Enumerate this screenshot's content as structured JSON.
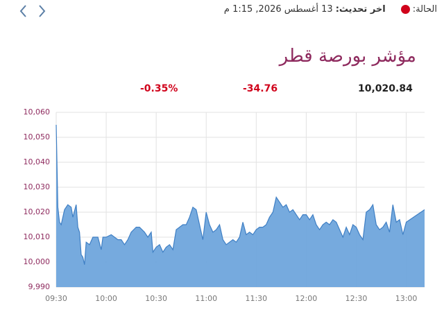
{
  "header": {
    "status_label": "الحالة:",
    "update_label": "اخر تحديث:",
    "update_value": "13 أغسطس 2026, 1:15 م"
  },
  "title": "مؤشر بورصة قطر",
  "quote": {
    "price": "10,020.84",
    "change": "-34.76",
    "change_pct": "-0.35%"
  },
  "chart_data": {
    "type": "area",
    "color": "#6fa5dc",
    "grid": true,
    "x": [
      "09:30",
      "09:31",
      "09:32",
      "09:33",
      "09:35",
      "09:37",
      "09:39",
      "09:40",
      "09:42",
      "09:43",
      "09:44",
      "09:45",
      "09:46",
      "09:47",
      "09:48",
      "09:50",
      "09:52",
      "09:54",
      "09:55",
      "09:57",
      "09:58",
      "10:00",
      "10:03",
      "10:05",
      "10:07",
      "10:09",
      "10:11",
      "10:13",
      "10:15",
      "10:18",
      "10:20",
      "10:23",
      "10:25",
      "10:27",
      "10:28",
      "10:30",
      "10:32",
      "10:34",
      "10:36",
      "10:38",
      "10:40",
      "10:42",
      "10:44",
      "10:46",
      "10:48",
      "10:50",
      "10:52",
      "10:54",
      "10:56",
      "10:58",
      "11:00",
      "11:02",
      "11:04",
      "11:06",
      "11:08",
      "11:10",
      "11:12",
      "11:14",
      "11:16",
      "11:18",
      "11:20",
      "11:22",
      "11:24",
      "11:26",
      "11:28",
      "11:30",
      "11:32",
      "11:34",
      "11:36",
      "11:38",
      "11:40",
      "11:42",
      "11:44",
      "11:46",
      "11:48",
      "11:50",
      "11:52",
      "11:54",
      "11:56",
      "11:58",
      "12:00",
      "12:02",
      "12:04",
      "12:06",
      "12:08",
      "12:10",
      "12:12",
      "12:14",
      "12:16",
      "12:18",
      "12:20",
      "12:22",
      "12:24",
      "12:26",
      "12:28",
      "12:30",
      "12:32",
      "12:34",
      "12:36",
      "12:38",
      "12:40",
      "12:42",
      "12:44",
      "12:46",
      "12:48",
      "12:50",
      "12:52",
      "12:54",
      "12:56",
      "12:58",
      "13:00",
      "13:11"
    ],
    "values": [
      10055,
      10022,
      10016,
      10015,
      10021,
      10023,
      10022,
      10018,
      10023,
      10014,
      10012,
      10003,
      10002,
      9999,
      10008,
      10007,
      10010,
      10010,
      10010,
      10005,
      10010,
      10010,
      10011,
      10010,
      10009,
      10009,
      10007,
      10009,
      10012,
      10014,
      10014,
      10012,
      10010,
      10012,
      10004,
      10006,
      10007,
      10004,
      10006,
      10007,
      10005,
      10013,
      10014,
      10015,
      10015,
      10018,
      10022,
      10021,
      10015,
      10009,
      10020,
      10015,
      10012,
      10013,
      10015,
      10009,
      10007,
      10008,
      10009,
      10008,
      10010,
      10016,
      10011,
      10012,
      10011,
      10013,
      10014,
      10014,
      10015,
      10018,
      10020,
      10026,
      10024,
      10022,
      10023,
      10020,
      10021,
      10019,
      10017,
      10019,
      10019,
      10017,
      10019,
      10015,
      10013,
      10015,
      10016,
      10015,
      10017,
      10016,
      10013,
      10010,
      10014,
      10011,
      10015,
      10014,
      10011,
      10009,
      10020,
      10021,
      10023,
      10015,
      10013,
      10014,
      10016,
      10012,
      10023,
      10016,
      10017,
      10011,
      10016,
      10021
    ],
    "xlim": [
      "09:30",
      "13:11"
    ],
    "xticks": [
      "09:30",
      "10:00",
      "10:30",
      "11:00",
      "11:30",
      "12:00",
      "12:30",
      "13:00"
    ],
    "ylim": [
      9990,
      10060
    ],
    "yticks": [
      {
        "value": 9990,
        "label": "9,990"
      },
      {
        "value": 10000,
        "label": "10,000"
      },
      {
        "value": 10010,
        "label": "10,010"
      },
      {
        "value": 10020,
        "label": "10,020"
      },
      {
        "value": 10030,
        "label": "10,030"
      },
      {
        "value": 10040,
        "label": "10,040"
      },
      {
        "value": 10050,
        "label": "10,050"
      },
      {
        "value": 10060,
        "label": "10,060"
      }
    ]
  }
}
